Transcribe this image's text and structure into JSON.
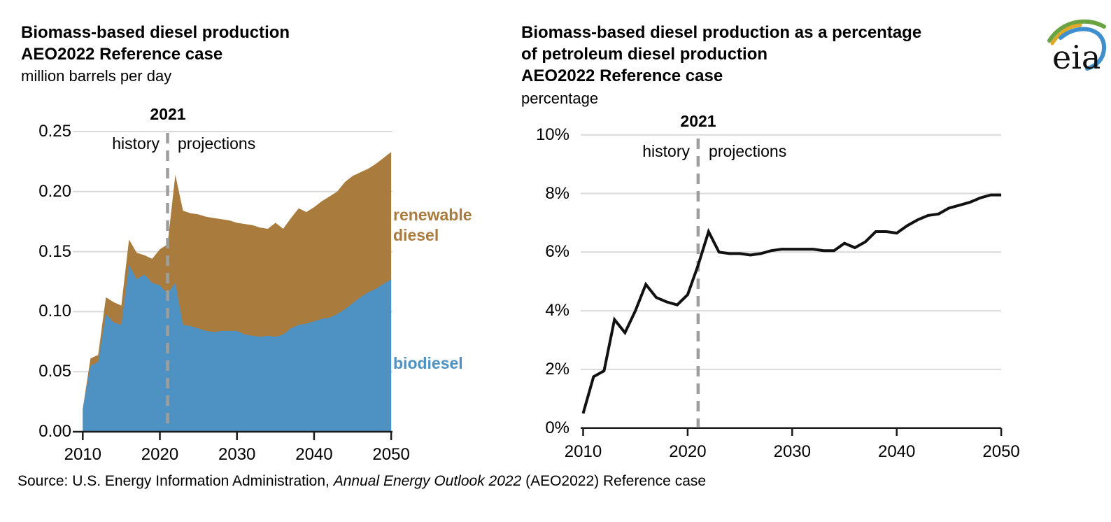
{
  "source_line": {
    "prefix": "Source: U.S. Energy Information Administration, ",
    "italic": "Annual Energy Outlook 2022",
    "suffix": " (AEO2022) Reference case"
  },
  "logo": {
    "text": "eia"
  },
  "left_chart": {
    "title_line1": "Biomass-based diesel production",
    "title_line2": "AEO2022 Reference case",
    "units": "million barrels per day",
    "year_marker": "2021",
    "history_label": "history",
    "projections_label": "projections",
    "legend": {
      "renewable_line1": "renewable",
      "renewable_line2": "diesel",
      "biodiesel": "biodiesel"
    },
    "x_tick_labels": [
      "2010",
      "2020",
      "2030",
      "2040",
      "2050"
    ],
    "y_tick_labels": [
      "0.00",
      "0.05",
      "0.10",
      "0.15",
      "0.20",
      "0.25"
    ]
  },
  "right_chart": {
    "title_line1": "Biomass-based diesel production as a percentage",
    "title_line2": "of petroleum diesel production",
    "title_line3": "AEO2022 Reference case",
    "units": "percentage",
    "year_marker": "2021",
    "history_label": "history",
    "projections_label": "projections",
    "x_tick_labels": [
      "2010",
      "2020",
      "2030",
      "2040",
      "2050"
    ],
    "y_tick_labels": [
      "0%",
      "2%",
      "4%",
      "6%",
      "8%",
      "10%"
    ]
  },
  "colors": {
    "biodiesel_blue": "#4e92c3",
    "renewable_brown": "#a97b3d",
    "line_black": "#111111",
    "dashed_gray": "#9e9e9e",
    "gridline_gray": "#d9d9d9",
    "axis_black": "#1a1a1a"
  },
  "chart_data": [
    {
      "type": "area",
      "stacked": true,
      "title": "Biomass-based diesel production AEO2022 Reference case",
      "ylabel": "million barrels per day",
      "xlim": [
        2010,
        2050
      ],
      "ylim": [
        0,
        0.25
      ],
      "x_ticks": [
        2010,
        2020,
        2030,
        2040,
        2050
      ],
      "y_ticks": [
        0,
        0.05,
        0.1,
        0.15,
        0.2,
        0.25
      ],
      "grid": true,
      "divider_year": 2021,
      "x": [
        2010,
        2011,
        2012,
        2013,
        2014,
        2015,
        2016,
        2017,
        2018,
        2019,
        2020,
        2021,
        2022,
        2023,
        2024,
        2025,
        2026,
        2027,
        2028,
        2029,
        2030,
        2031,
        2032,
        2033,
        2034,
        2035,
        2036,
        2037,
        2038,
        2039,
        2040,
        2041,
        2042,
        2043,
        2044,
        2045,
        2046,
        2047,
        2048,
        2049,
        2050
      ],
      "series": [
        {
          "name": "biodiesel",
          "values": [
            0.019,
            0.055,
            0.058,
            0.098,
            0.091,
            0.089,
            0.139,
            0.127,
            0.131,
            0.124,
            0.122,
            0.115,
            0.124,
            0.089,
            0.088,
            0.086,
            0.084,
            0.083,
            0.084,
            0.084,
            0.084,
            0.081,
            0.08,
            0.079,
            0.08,
            0.079,
            0.081,
            0.086,
            0.089,
            0.09,
            0.092,
            0.094,
            0.095,
            0.098,
            0.102,
            0.107,
            0.112,
            0.116,
            0.119,
            0.123,
            0.127
          ]
        },
        {
          "name": "renewable diesel",
          "values": [
            0.0,
            0.006,
            0.006,
            0.014,
            0.017,
            0.016,
            0.021,
            0.022,
            0.016,
            0.02,
            0.03,
            0.041,
            0.09,
            0.095,
            0.094,
            0.095,
            0.095,
            0.095,
            0.093,
            0.092,
            0.09,
            0.092,
            0.092,
            0.091,
            0.089,
            0.095,
            0.088,
            0.092,
            0.097,
            0.093,
            0.095,
            0.098,
            0.101,
            0.102,
            0.106,
            0.106,
            0.104,
            0.103,
            0.104,
            0.105,
            0.106
          ]
        }
      ]
    },
    {
      "type": "line",
      "title": "Biomass-based diesel production as a percentage of petroleum diesel production AEO2022 Reference case",
      "ylabel": "percentage",
      "xlim": [
        2010,
        2050
      ],
      "ylim": [
        0,
        10
      ],
      "x_ticks": [
        2010,
        2020,
        2030,
        2040,
        2050
      ],
      "y_ticks": [
        0,
        2,
        4,
        6,
        8,
        10
      ],
      "grid": true,
      "divider_year": 2021,
      "x": [
        2010,
        2011,
        2012,
        2013,
        2014,
        2015,
        2016,
        2017,
        2018,
        2019,
        2020,
        2021,
        2022,
        2023,
        2024,
        2025,
        2026,
        2027,
        2028,
        2029,
        2030,
        2031,
        2032,
        2033,
        2034,
        2035,
        2036,
        2037,
        2038,
        2039,
        2040,
        2041,
        2042,
        2043,
        2044,
        2045,
        2046,
        2047,
        2048,
        2049,
        2050
      ],
      "series": [
        {
          "name": "biomass-based diesel share of petroleum diesel",
          "values": [
            0.5,
            1.75,
            1.95,
            3.7,
            3.25,
            4.0,
            4.9,
            4.45,
            4.3,
            4.2,
            4.55,
            5.55,
            6.7,
            6.0,
            5.95,
            5.95,
            5.9,
            5.95,
            6.05,
            6.1,
            6.1,
            6.1,
            6.1,
            6.05,
            6.05,
            6.3,
            6.15,
            6.35,
            6.7,
            6.7,
            6.65,
            6.9,
            7.1,
            7.25,
            7.3,
            7.5,
            7.6,
            7.7,
            7.85,
            7.95,
            7.95
          ]
        }
      ]
    }
  ]
}
